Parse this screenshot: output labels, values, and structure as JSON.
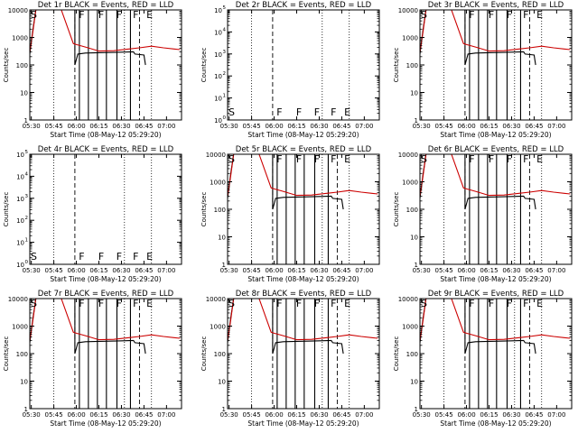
{
  "figure": {
    "x_axis_label": "Start Time (08-May-12 05:29:20)",
    "y_axis_label": "Counts/sec",
    "x_ticks": [
      "05:30",
      "05:45",
      "06:00",
      "06:15",
      "06:30",
      "06:45",
      "07:00"
    ],
    "y_ticks_a": [
      "1",
      "10",
      "100",
      "1000",
      "10000"
    ],
    "y_ticks_b": [
      "10",
      "10",
      "10",
      "10",
      "10",
      "10"
    ],
    "y_ticks_b_exp": [
      "0",
      "1",
      "2",
      "3",
      "4",
      "5"
    ],
    "colors": {
      "events": "#000000",
      "lld": "#cc0000",
      "background": "#ffffff"
    }
  },
  "chart_data": [
    {
      "title": "Det 1r BLACK = Events, RED = LLD",
      "type": "line",
      "y_scale": "log",
      "ylim": [
        1,
        10000
      ],
      "xlim": [
        "05:29",
        "07:10"
      ],
      "panel_kind": "data",
      "series": [
        {
          "name": "Events",
          "x": [
            "05:29",
            "05:31",
            "05:33",
            "05:38",
            "05:59",
            "05:59",
            "06:01",
            "06:06",
            "06:15",
            "06:25",
            "06:38",
            "06:39",
            "06:45",
            "06:46"
          ],
          "y": [
            250,
            1800,
            10000,
            10000,
            10000,
            100,
            250,
            270,
            280,
            285,
            300,
            250,
            230,
            100
          ]
        },
        {
          "name": "LLD",
          "x": [
            "05:29",
            "05:31",
            "05:33",
            "05:38",
            "05:50",
            "05:58",
            "06:00",
            "06:06",
            "06:15",
            "06:25",
            "06:35",
            "06:42",
            "06:50",
            "06:58",
            "07:05",
            "07:09"
          ],
          "y": [
            300,
            1500,
            10000,
            10000,
            10000,
            600,
            550,
            450,
            320,
            330,
            380,
            420,
            480,
            420,
            380,
            360
          ]
        }
      ],
      "markers": {
        "start_sunlight_line": "05:32",
        "dashed_lines": [
          "05:29",
          "05:59",
          "06:42"
        ],
        "dotted_lines": [
          "05:45",
          "06:32",
          "06:50"
        ],
        "solid_lines": [
          "06:02",
          "06:08",
          "06:14",
          "06:20",
          "06:27",
          "06:36"
        ],
        "letters": [
          "S",
          "F",
          "F",
          "F",
          "F",
          "E"
        ]
      }
    },
    {
      "title": "Det 2r BLACK = Events, RED = LLD",
      "type": "line",
      "y_scale": "log",
      "ylim": [
        1,
        100000
      ],
      "xlim": [
        "05:29",
        "07:10"
      ],
      "panel_kind": "no_data",
      "series": [],
      "markers": {
        "dashed_lines": [
          "05:59"
        ],
        "dotted_lines": [
          "05:45",
          "06:32",
          "06:50"
        ],
        "solid_lines": [],
        "letters": [
          "S",
          "F",
          "F",
          "F",
          "F",
          "E"
        ]
      }
    },
    {
      "title": "Det 3r BLACK = Events, RED = LLD",
      "type": "line",
      "y_scale": "log",
      "ylim": [
        1,
        10000
      ],
      "xlim": [
        "05:29",
        "07:10"
      ],
      "panel_kind": "data",
      "series": [
        {
          "name": "Events",
          "x": [
            "05:29",
            "05:31",
            "05:33",
            "05:38",
            "05:59",
            "05:59",
            "06:01",
            "06:06",
            "06:15",
            "06:25",
            "06:38",
            "06:39",
            "06:45",
            "06:46"
          ],
          "y": [
            250,
            1800,
            10000,
            10000,
            10000,
            100,
            250,
            270,
            280,
            285,
            300,
            250,
            230,
            100
          ]
        },
        {
          "name": "LLD",
          "x": [
            "05:29",
            "05:31",
            "05:33",
            "05:38",
            "05:50",
            "05:58",
            "06:00",
            "06:06",
            "06:15",
            "06:25",
            "06:35",
            "06:42",
            "06:50",
            "06:58",
            "07:05",
            "07:09"
          ],
          "y": [
            300,
            1500,
            10000,
            10000,
            10000,
            600,
            550,
            450,
            320,
            330,
            380,
            420,
            480,
            420,
            380,
            360
          ]
        }
      ],
      "markers": {
        "dashed_lines": [
          "05:29",
          "05:59",
          "06:42"
        ],
        "dotted_lines": [
          "05:45",
          "06:32",
          "06:50"
        ],
        "solid_lines": [
          "06:02",
          "06:08",
          "06:14",
          "06:20",
          "06:27",
          "06:36"
        ],
        "letters": [
          "S",
          "F",
          "F",
          "F",
          "F",
          "E"
        ]
      }
    },
    {
      "title": "Det 4r BLACK = Events, RED = LLD",
      "type": "line",
      "y_scale": "log",
      "ylim": [
        1,
        100000
      ],
      "xlim": [
        "05:29",
        "07:10"
      ],
      "panel_kind": "no_data",
      "series": [],
      "markers": {
        "dashed_lines": [
          "05:59"
        ],
        "dotted_lines": [
          "05:45",
          "06:32",
          "06:50"
        ],
        "solid_lines": [],
        "letters": [
          "S",
          "F",
          "F",
          "F",
          "F",
          "E"
        ]
      }
    },
    {
      "title": "Det 5r BLACK = Events, RED = LLD",
      "type": "line",
      "y_scale": "log",
      "ylim": [
        1,
        10000
      ],
      "xlim": [
        "05:29",
        "07:10"
      ],
      "panel_kind": "data",
      "series": [
        {
          "name": "Events",
          "x": [
            "05:29",
            "05:31",
            "05:33",
            "05:38",
            "05:59",
            "05:59",
            "06:01",
            "06:06",
            "06:15",
            "06:25",
            "06:38",
            "06:39",
            "06:45",
            "06:46"
          ],
          "y": [
            250,
            1800,
            10000,
            10000,
            10000,
            100,
            250,
            270,
            280,
            285,
            300,
            250,
            230,
            100
          ]
        },
        {
          "name": "LLD",
          "x": [
            "05:29",
            "05:31",
            "05:33",
            "05:38",
            "05:50",
            "05:58",
            "06:00",
            "06:06",
            "06:15",
            "06:25",
            "06:35",
            "06:42",
            "06:50",
            "06:58",
            "07:05",
            "07:09"
          ],
          "y": [
            300,
            1500,
            10000,
            10000,
            10000,
            600,
            550,
            450,
            320,
            330,
            380,
            420,
            480,
            420,
            380,
            360
          ]
        }
      ],
      "markers": {
        "dashed_lines": [
          "05:29",
          "05:59",
          "06:42"
        ],
        "dotted_lines": [
          "05:45",
          "06:32",
          "06:50"
        ],
        "solid_lines": [
          "06:02",
          "06:08",
          "06:14",
          "06:20",
          "06:27",
          "06:36"
        ],
        "letters": [
          "S",
          "F",
          "F",
          "F",
          "F",
          "E"
        ]
      }
    },
    {
      "title": "Det 6r BLACK = Events, RED = LLD",
      "type": "line",
      "y_scale": "log",
      "ylim": [
        1,
        10000
      ],
      "xlim": [
        "05:29",
        "07:10"
      ],
      "panel_kind": "data",
      "series": [
        {
          "name": "Events",
          "x": [
            "05:29",
            "05:31",
            "05:33",
            "05:38",
            "05:59",
            "05:59",
            "06:01",
            "06:06",
            "06:15",
            "06:25",
            "06:38",
            "06:39",
            "06:45",
            "06:46"
          ],
          "y": [
            250,
            1800,
            10000,
            10000,
            10000,
            100,
            250,
            270,
            280,
            285,
            300,
            250,
            230,
            100
          ]
        },
        {
          "name": "LLD",
          "x": [
            "05:29",
            "05:31",
            "05:33",
            "05:38",
            "05:50",
            "05:58",
            "06:00",
            "06:06",
            "06:15",
            "06:25",
            "06:35",
            "06:42",
            "06:50",
            "06:58",
            "07:05",
            "07:09"
          ],
          "y": [
            300,
            1500,
            10000,
            10000,
            10000,
            600,
            550,
            450,
            320,
            330,
            380,
            420,
            480,
            420,
            380,
            360
          ]
        }
      ],
      "markers": {
        "dashed_lines": [
          "05:29",
          "05:59",
          "06:42"
        ],
        "dotted_lines": [
          "05:45",
          "06:32",
          "06:50"
        ],
        "solid_lines": [
          "06:02",
          "06:08",
          "06:14",
          "06:20",
          "06:27",
          "06:36"
        ],
        "letters": [
          "S",
          "F",
          "F",
          "F",
          "F",
          "E"
        ]
      }
    },
    {
      "title": "Det 7r BLACK = Events, RED = LLD",
      "type": "line",
      "y_scale": "log",
      "ylim": [
        1,
        10000
      ],
      "xlim": [
        "05:29",
        "07:10"
      ],
      "panel_kind": "data",
      "series": [
        {
          "name": "Events",
          "x": [
            "05:29",
            "05:31",
            "05:33",
            "05:38",
            "05:59",
            "05:59",
            "06:01",
            "06:06",
            "06:15",
            "06:25",
            "06:38",
            "06:39",
            "06:45",
            "06:46"
          ],
          "y": [
            250,
            1800,
            10000,
            10000,
            10000,
            100,
            250,
            270,
            280,
            285,
            300,
            250,
            230,
            100
          ]
        },
        {
          "name": "LLD",
          "x": [
            "05:29",
            "05:31",
            "05:33",
            "05:38",
            "05:50",
            "05:58",
            "06:00",
            "06:06",
            "06:15",
            "06:25",
            "06:35",
            "06:42",
            "06:50",
            "06:58",
            "07:05",
            "07:09"
          ],
          "y": [
            300,
            1500,
            10000,
            10000,
            10000,
            600,
            550,
            450,
            320,
            330,
            380,
            420,
            480,
            420,
            380,
            360
          ]
        }
      ],
      "markers": {
        "dashed_lines": [
          "05:29",
          "05:59",
          "06:42"
        ],
        "dotted_lines": [
          "05:45",
          "06:32",
          "06:50"
        ],
        "solid_lines": [
          "06:02",
          "06:08",
          "06:14",
          "06:20",
          "06:27",
          "06:36"
        ],
        "letters": [
          "S",
          "F",
          "F",
          "F",
          "F",
          "E"
        ]
      }
    },
    {
      "title": "Det 8r BLACK = Events, RED = LLD",
      "type": "line",
      "y_scale": "log",
      "ylim": [
        1,
        10000
      ],
      "xlim": [
        "05:29",
        "07:10"
      ],
      "panel_kind": "data",
      "series": [
        {
          "name": "Events",
          "x": [
            "05:29",
            "05:31",
            "05:33",
            "05:38",
            "05:59",
            "05:59",
            "06:01",
            "06:06",
            "06:15",
            "06:25",
            "06:38",
            "06:39",
            "06:45",
            "06:46"
          ],
          "y": [
            250,
            1800,
            10000,
            10000,
            10000,
            100,
            250,
            270,
            280,
            285,
            300,
            250,
            230,
            100
          ]
        },
        {
          "name": "LLD",
          "x": [
            "05:29",
            "05:31",
            "05:33",
            "05:38",
            "05:50",
            "05:58",
            "06:00",
            "06:06",
            "06:15",
            "06:25",
            "06:35",
            "06:42",
            "06:50",
            "06:58",
            "07:05",
            "07:09"
          ],
          "y": [
            300,
            1500,
            10000,
            10000,
            10000,
            600,
            550,
            450,
            320,
            330,
            380,
            420,
            480,
            420,
            380,
            360
          ]
        }
      ],
      "markers": {
        "dashed_lines": [
          "05:29",
          "05:59",
          "06:42"
        ],
        "dotted_lines": [
          "05:45",
          "06:32",
          "06:50"
        ],
        "solid_lines": [
          "06:02",
          "06:08",
          "06:14",
          "06:20",
          "06:27",
          "06:36"
        ],
        "letters": [
          "S",
          "F",
          "F",
          "F",
          "F",
          "E"
        ]
      }
    },
    {
      "title": "Det 9r BLACK = Events, RED = LLD",
      "type": "line",
      "y_scale": "log",
      "ylim": [
        1,
        10000
      ],
      "xlim": [
        "05:29",
        "07:10"
      ],
      "panel_kind": "data",
      "series": [
        {
          "name": "Events",
          "x": [
            "05:29",
            "05:31",
            "05:33",
            "05:38",
            "05:59",
            "05:59",
            "06:01",
            "06:06",
            "06:15",
            "06:25",
            "06:38",
            "06:39",
            "06:45",
            "06:46"
          ],
          "y": [
            250,
            1800,
            10000,
            10000,
            10000,
            100,
            250,
            270,
            280,
            285,
            300,
            250,
            230,
            100
          ]
        },
        {
          "name": "LLD",
          "x": [
            "05:29",
            "05:31",
            "05:33",
            "05:38",
            "05:50",
            "05:58",
            "06:00",
            "06:06",
            "06:15",
            "06:25",
            "06:35",
            "06:42",
            "06:50",
            "06:58",
            "07:05",
            "07:09"
          ],
          "y": [
            300,
            1500,
            10000,
            10000,
            10000,
            600,
            550,
            450,
            320,
            330,
            380,
            420,
            480,
            420,
            380,
            360
          ]
        }
      ],
      "markers": {
        "dashed_lines": [
          "05:29",
          "05:59",
          "06:42"
        ],
        "dotted_lines": [
          "05:45",
          "06:32",
          "06:50"
        ],
        "solid_lines": [
          "06:02",
          "06:08",
          "06:14",
          "06:20",
          "06:27",
          "06:36"
        ],
        "letters": [
          "S",
          "F",
          "F",
          "F",
          "F",
          "E"
        ]
      }
    }
  ]
}
